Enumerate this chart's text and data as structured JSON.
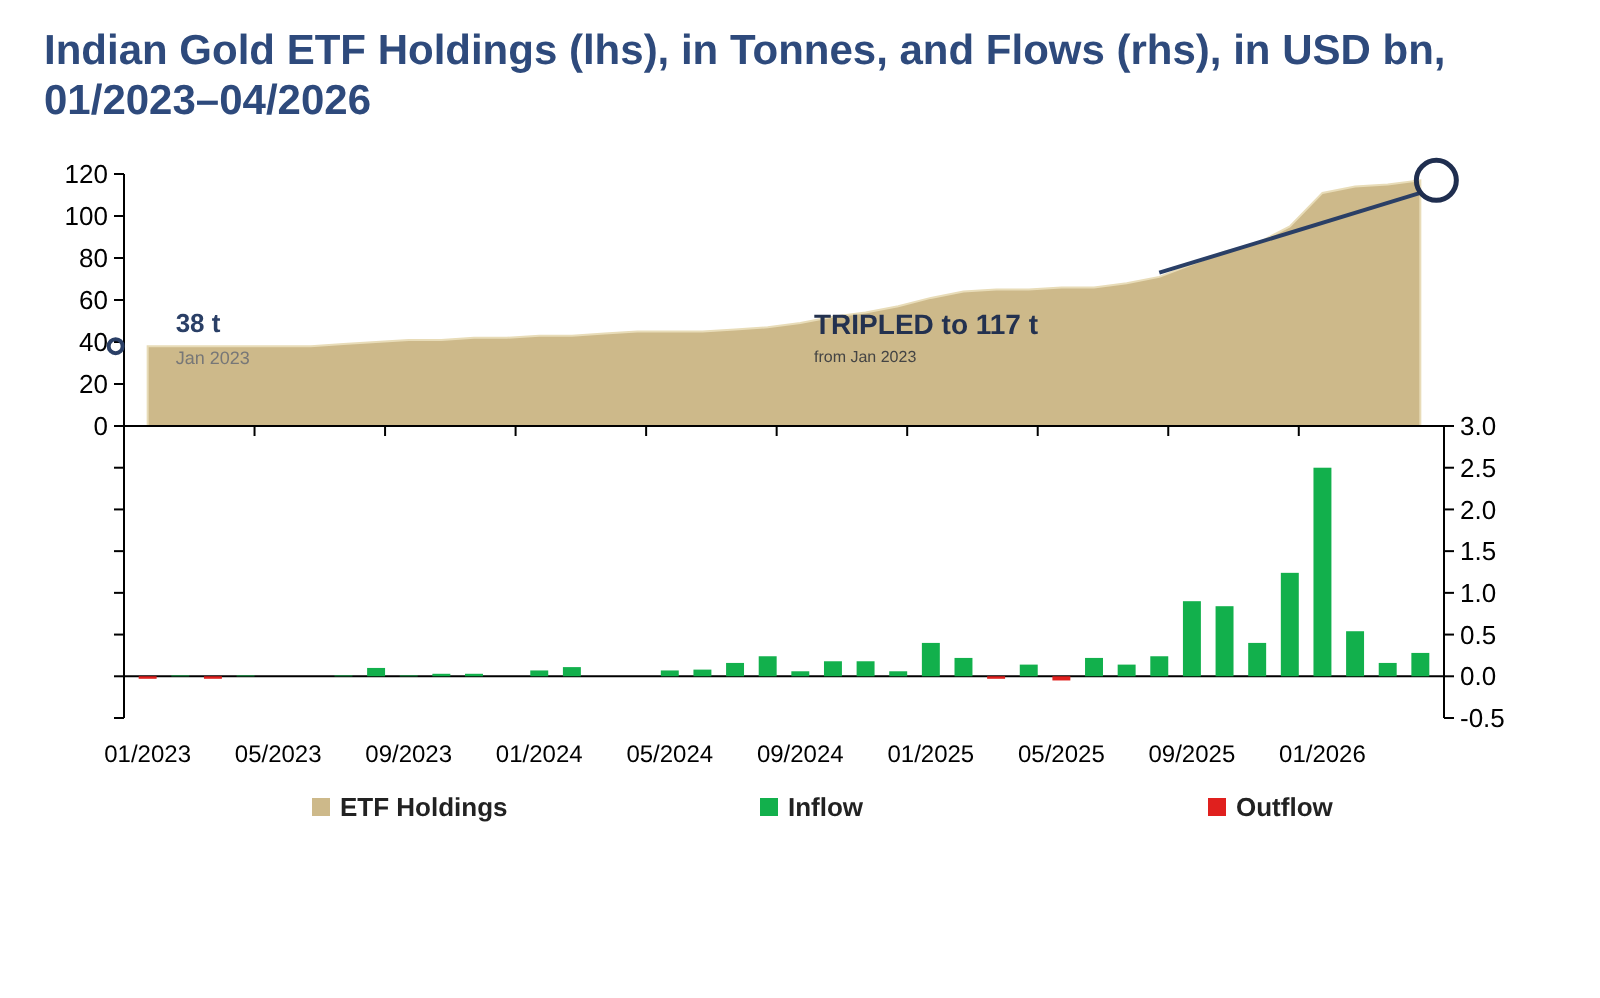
{
  "chart_data": [
    {
      "type": "area",
      "title": "Indian Gold ETF Holdings (lhs), in Tonnes, and Flows (rhs), in USD bn, 01/2023–04/2026",
      "categories": [
        null,
        null,
        null,
        null,
        null,
        null,
        null,
        null,
        null,
        null,
        null,
        null,
        null,
        null,
        null,
        null,
        null,
        null,
        null,
        null,
        null,
        null,
        null,
        null,
        null,
        null,
        null,
        null,
        null,
        null,
        null,
        null,
        null,
        null,
        null,
        null,
        null,
        null,
        null,
        null
      ],
      "series": [
        {
          "name": "ETF Holdings",
          "color": "#cdb98a",
          "values": [
            38,
            38,
            38,
            38,
            38,
            38,
            39,
            40,
            41,
            41,
            42,
            42,
            43,
            43,
            44,
            45,
            45,
            45,
            46,
            47,
            49,
            52,
            54,
            57,
            61,
            64,
            65,
            65,
            66,
            66,
            68,
            71,
            77,
            83,
            87,
            95,
            111,
            114,
            115,
            117
          ]
        },
        {
          "type": "line",
          "color": "#2a3f66",
          "values": [
            null,
            null,
            null,
            null,
            null,
            null,
            null,
            null,
            null,
            null,
            null,
            null,
            null,
            null,
            null,
            null,
            null,
            null,
            null,
            null,
            null,
            null,
            null,
            null,
            null,
            null,
            null,
            null,
            null,
            null,
            null,
            73,
            null,
            null,
            null,
            null,
            null,
            null,
            null,
            111
          ]
        }
      ],
      "ylim": [
        0,
        120
      ],
      "yticks": [
        0,
        20,
        40,
        60,
        80,
        100,
        120
      ],
      "tick_labels": "y",
      "legend": "bottom",
      "annotations": [
        "38 t",
        "Jan 2023",
        "TRIPLED to 117 t",
        "from Jan 2023"
      ]
    },
    {
      "type": "bar",
      "stacked": true,
      "categories": [
        "01/2023",
        null,
        null,
        null,
        "05/2023",
        null,
        null,
        null,
        "09/2023",
        null,
        null,
        null,
        "01/2024",
        null,
        null,
        null,
        "05/2024",
        null,
        null,
        null,
        "09/2024",
        null,
        null,
        null,
        "01/2025",
        null,
        null,
        null,
        "05/2025",
        null,
        null,
        null,
        "09/2025",
        null,
        null,
        null,
        "01/2026",
        null,
        null,
        null
      ],
      "series": [
        {
          "name": "Inflow",
          "color": "#12b04c",
          "axis": "y2",
          "values": [
            null,
            0.01,
            null,
            0.01,
            0,
            0,
            0.01,
            0.1,
            0.01,
            0.03,
            0.03,
            0,
            0.07,
            0.11,
            0,
            0,
            0.07,
            0.08,
            0.16,
            0.24,
            0.06,
            0.18,
            0.18,
            0.06,
            0.4,
            0.22,
            null,
            0.14,
            null,
            0.22,
            0.14,
            0.24,
            0.9,
            0.84,
            0.4,
            1.24,
            2.5,
            0.54,
            0.16,
            0.28
          ]
        },
        {
          "name": "Outflow",
          "color": "#e0201e",
          "axis": "y2",
          "values": [
            -0.03,
            null,
            -0.03,
            null,
            null,
            null,
            null,
            null,
            null,
            null,
            null,
            null,
            null,
            null,
            null,
            null,
            null,
            null,
            null,
            null,
            null,
            null,
            null,
            null,
            null,
            null,
            -0.03,
            null,
            -0.05,
            null,
            null,
            null,
            null,
            null,
            null,
            null,
            null,
            null,
            null,
            null
          ]
        }
      ],
      "y2lim": [
        -0.5,
        3
      ],
      "y2ticks": [
        {
          "value": -0.5,
          "label": "-0.5"
        },
        {
          "value": 0,
          "label": "0.0"
        },
        {
          "value": 0.5,
          "label": "0.5"
        },
        {
          "value": 1,
          "label": "1.0"
        },
        {
          "value": 1.5,
          "label": "1.5"
        },
        {
          "value": 2,
          "label": "2.0"
        },
        {
          "value": 2.5,
          "label": "2.5"
        },
        {
          "value": 3,
          "label": "3.0"
        }
      ],
      "legend": "bottom"
    }
  ]
}
